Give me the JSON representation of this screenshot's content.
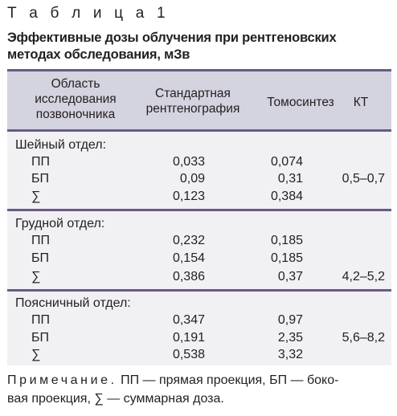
{
  "caption": "Т а б л и ц а  1",
  "title": "Эффективные дозы облучения при рентгеновских методах обследования, мЗв",
  "table": {
    "headers": {
      "region": [
        "Область",
        "исследования",
        "позвоночника"
      ],
      "standard": [
        "Стандартная",
        "рентгенография"
      ],
      "tomo": [
        "Томосинтез"
      ],
      "ct": [
        "КТ"
      ]
    },
    "sections": [
      {
        "name": "Шейный отдел:",
        "rows": [
          {
            "label": "ПП",
            "standard": "0,033",
            "tomo": "0,074"
          },
          {
            "label": "БП",
            "standard": "0,09",
            "tomo": "0,31"
          },
          {
            "label": "∑",
            "standard": "0,123",
            "tomo": "0,384"
          }
        ],
        "ct": "0,5–0,7"
      },
      {
        "name": "Грудной отдел:",
        "rows": [
          {
            "label": "ПП",
            "standard": "0,232",
            "tomo": "0,185"
          },
          {
            "label": "БП",
            "standard": "0,154",
            "tomo": "0,185"
          },
          {
            "label": "∑",
            "standard": "0,386",
            "tomo": "0,37"
          }
        ],
        "ct": "4,2–5,2"
      },
      {
        "name": "Поясничный отдел:",
        "rows": [
          {
            "label": "ПП",
            "standard": "0,347",
            "tomo": "0,97"
          },
          {
            "label": "БП",
            "standard": "0,191",
            "tomo": "2,35"
          },
          {
            "label": "∑",
            "standard": "0,538",
            "tomo": "3,32"
          }
        ],
        "ct": "5,6–8,2"
      }
    ]
  },
  "note": {
    "label": "Примечание.",
    "line1": "ПП — прямая проекция, БП — боко-",
    "line2": "вая проекция, ∑ — суммарная доза."
  },
  "colors": {
    "rule": "#6a5a86",
    "header_bg": "#d4d3e0",
    "body_bg": "#f1f0f3"
  }
}
